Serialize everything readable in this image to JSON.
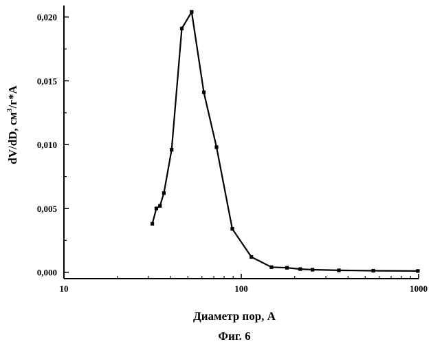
{
  "chart_data": {
    "type": "line",
    "xlabel": "Диаметр пор, А",
    "ylabel_main": "dV/dD, см",
    "ylabel_sup": "3",
    "ylabel_tail": "/г*А",
    "caption": "Фиг. 6",
    "x_scale": "log",
    "xlim": [
      10,
      1000
    ],
    "ylim": [
      -0.0005,
      0.0209
    ],
    "x_tick_values": [
      10,
      100,
      1000
    ],
    "x_tick_labels": [
      "10",
      "100",
      "1000"
    ],
    "y_tick_values": [
      0,
      0.005,
      0.01,
      0.015,
      0.02
    ],
    "y_tick_labels": [
      "0,000",
      "0,005",
      "0,010",
      "0,015",
      "0,020"
    ],
    "grid": false,
    "series": [
      {
        "x": [
          31.5,
          33.2,
          34.8,
          36.6,
          40.5,
          46.2,
          52.5,
          61.5,
          72.5,
          89,
          114,
          148,
          181,
          215,
          252,
          355,
          555,
          990
        ],
        "y": [
          0.0038,
          0.005,
          0.0052,
          0.0062,
          0.0096,
          0.0191,
          0.0204,
          0.0141,
          0.0098,
          0.0034,
          0.0012,
          0.0004,
          0.00035,
          0.00025,
          0.0002,
          0.00015,
          0.00012,
          0.0001
        ]
      }
    ]
  }
}
